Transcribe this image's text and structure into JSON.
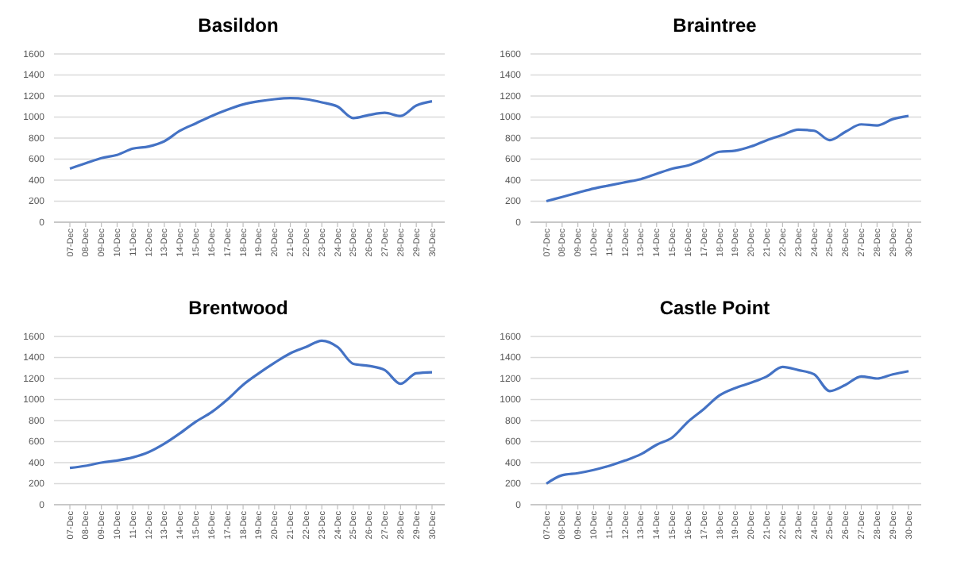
{
  "chart_data": [
    {
      "type": "line",
      "title": "Basildon",
      "categories": [
        "07-Dec",
        "08-Dec",
        "09-Dec",
        "10-Dec",
        "11-Dec",
        "12-Dec",
        "13-Dec",
        "14-Dec",
        "15-Dec",
        "16-Dec",
        "17-Dec",
        "18-Dec",
        "19-Dec",
        "20-Dec",
        "21-Dec",
        "22-Dec",
        "23-Dec",
        "24-Dec",
        "25-Dec",
        "26-Dec",
        "27-Dec",
        "28-Dec",
        "29-Dec",
        "30-Dec"
      ],
      "values": [
        510,
        560,
        610,
        640,
        700,
        720,
        770,
        870,
        940,
        1010,
        1070,
        1120,
        1150,
        1170,
        1180,
        1170,
        1140,
        1100,
        990,
        1020,
        1040,
        1010,
        1110,
        1150
      ],
      "color": "#4472c4",
      "ylim": [
        0,
        1600
      ],
      "yticks": [
        0,
        200,
        400,
        600,
        800,
        1000,
        1200,
        1400,
        1600
      ],
      "grid": "y"
    },
    {
      "type": "line",
      "title": "Braintree",
      "categories": [
        "07-Dec",
        "08-Dec",
        "09-Dec",
        "10-Dec",
        "11-Dec",
        "12-Dec",
        "13-Dec",
        "14-Dec",
        "15-Dec",
        "16-Dec",
        "17-Dec",
        "18-Dec",
        "19-Dec",
        "20-Dec",
        "21-Dec",
        "22-Dec",
        "23-Dec",
        "24-Dec",
        "25-Dec",
        "26-Dec",
        "27-Dec",
        "28-Dec",
        "29-Dec",
        "30-Dec"
      ],
      "values": [
        200,
        240,
        280,
        320,
        350,
        380,
        410,
        460,
        510,
        540,
        600,
        670,
        680,
        720,
        780,
        830,
        880,
        870,
        780,
        860,
        930,
        920,
        980,
        1010
      ],
      "color": "#4472c4",
      "ylim": [
        0,
        1600
      ],
      "yticks": [
        0,
        200,
        400,
        600,
        800,
        1000,
        1200,
        1400,
        1600
      ],
      "grid": "y"
    },
    {
      "type": "line",
      "title": "Brentwood",
      "categories": [
        "07-Dec",
        "08-Dec",
        "09-Dec",
        "10-Dec",
        "11-Dec",
        "12-Dec",
        "13-Dec",
        "14-Dec",
        "15-Dec",
        "16-Dec",
        "17-Dec",
        "18-Dec",
        "19-Dec",
        "20-Dec",
        "21-Dec",
        "22-Dec",
        "23-Dec",
        "24-Dec",
        "25-Dec",
        "26-Dec",
        "27-Dec",
        "28-Dec",
        "29-Dec",
        "30-Dec"
      ],
      "values": [
        350,
        370,
        400,
        420,
        450,
        500,
        580,
        680,
        790,
        880,
        1000,
        1140,
        1250,
        1350,
        1440,
        1500,
        1560,
        1500,
        1340,
        1320,
        1280,
        1150,
        1250,
        1260
      ],
      "color": "#4472c4",
      "ylim": [
        0,
        1600
      ],
      "yticks": [
        0,
        200,
        400,
        600,
        800,
        1000,
        1200,
        1400,
        1600
      ],
      "grid": "y"
    },
    {
      "type": "line",
      "title": "Castle Point",
      "categories": [
        "07-Dec",
        "08-Dec",
        "09-Dec",
        "10-Dec",
        "11-Dec",
        "12-Dec",
        "13-Dec",
        "14-Dec",
        "15-Dec",
        "16-Dec",
        "17-Dec",
        "18-Dec",
        "19-Dec",
        "20-Dec",
        "21-Dec",
        "22-Dec",
        "23-Dec",
        "24-Dec",
        "25-Dec",
        "26-Dec",
        "27-Dec",
        "28-Dec",
        "29-Dec",
        "30-Dec"
      ],
      "values": [
        200,
        280,
        300,
        330,
        370,
        420,
        480,
        570,
        640,
        790,
        910,
        1040,
        1110,
        1160,
        1220,
        1310,
        1280,
        1240,
        1080,
        1140,
        1220,
        1200,
        1240,
        1270
      ],
      "color": "#4472c4",
      "ylim": [
        0,
        1600
      ],
      "yticks": [
        0,
        200,
        400,
        600,
        800,
        1000,
        1200,
        1400,
        1600
      ],
      "grid": "y"
    }
  ]
}
